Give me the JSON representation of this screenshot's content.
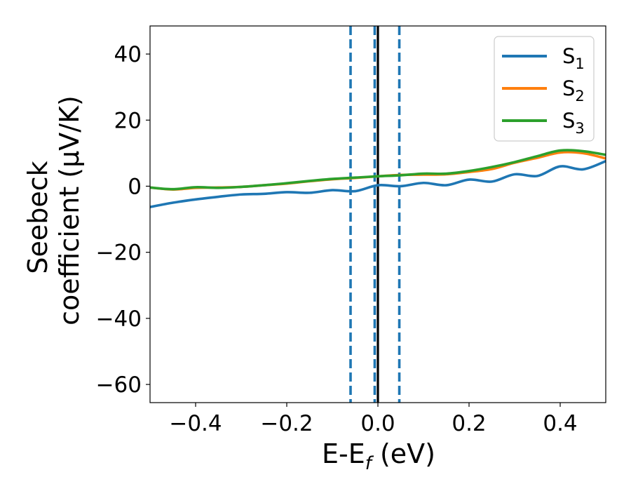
{
  "chart_data": {
    "type": "line",
    "xlabel": {
      "main": "E-E",
      "sub": "f",
      "rest": " (eV)"
    },
    "ylabel": {
      "line1": "Seebeck",
      "line2": "coefficient  (μV/K)"
    },
    "xlim": [
      -0.5,
      0.5
    ],
    "ylim": [
      -65.5,
      48.5
    ],
    "x_ticks": [
      -0.4,
      -0.2,
      0.0,
      0.2,
      0.4
    ],
    "x_tick_labels": [
      "−0.4",
      "−0.2",
      "0.0",
      "0.2",
      "0.4"
    ],
    "y_ticks": [
      40,
      20,
      0,
      -20,
      -40,
      -60
    ],
    "y_tick_labels": [
      "40",
      "20",
      "0",
      "−20",
      "−40",
      "−60"
    ],
    "grid": false,
    "legend_position": "top-right",
    "vertical_lines": [
      {
        "x": 0.0,
        "style": "solid",
        "color": "#000000"
      },
      {
        "x": -0.06,
        "style": "dashed",
        "color": "#1f77b4"
      },
      {
        "x": -0.007,
        "style": "dashed",
        "color": "#1f77b4"
      },
      {
        "x": 0.047,
        "style": "dashed",
        "color": "#1f77b4"
      }
    ],
    "series": [
      {
        "name": "S",
        "sub": "1",
        "color": "#1f77b4",
        "x": [
          -0.5,
          -0.45,
          -0.4,
          -0.35,
          -0.3,
          -0.25,
          -0.2,
          -0.15,
          -0.1,
          -0.05,
          0.0,
          0.05,
          0.1,
          0.15,
          0.2,
          0.25,
          0.3,
          0.35,
          0.4,
          0.45,
          0.5
        ],
        "y": [
          -6.3,
          -5.0,
          -4.0,
          -3.2,
          -2.5,
          -2.3,
          -1.8,
          -2.0,
          -1.2,
          -1.5,
          0.3,
          0.0,
          1.0,
          0.3,
          2.0,
          1.4,
          3.6,
          3.1,
          6.0,
          5.1,
          7.6
        ]
      },
      {
        "name": "S",
        "sub": "2",
        "color": "#ff7f0e",
        "x": [
          -0.5,
          -0.45,
          -0.4,
          -0.35,
          -0.3,
          -0.25,
          -0.2,
          -0.15,
          -0.1,
          -0.05,
          0.0,
          0.05,
          0.1,
          0.15,
          0.2,
          0.25,
          0.3,
          0.35,
          0.4,
          0.45,
          0.5
        ],
        "y": [
          -0.4,
          -1.0,
          -0.5,
          -0.4,
          -0.2,
          0.3,
          0.8,
          1.5,
          2.1,
          2.5,
          3.0,
          3.4,
          3.5,
          3.6,
          4.3,
          5.2,
          7.1,
          8.6,
          10.2,
          10.0,
          8.4
        ]
      },
      {
        "name": "S",
        "sub": "3",
        "color": "#2ca02c",
        "x": [
          -0.5,
          -0.45,
          -0.4,
          -0.35,
          -0.3,
          -0.25,
          -0.2,
          -0.15,
          -0.1,
          -0.05,
          0.0,
          0.05,
          0.1,
          0.15,
          0.2,
          0.25,
          0.3,
          0.35,
          0.4,
          0.45,
          0.5
        ],
        "y": [
          -0.4,
          -0.9,
          -0.3,
          -0.5,
          -0.2,
          0.3,
          0.9,
          1.6,
          2.2,
          2.6,
          3.0,
          3.3,
          3.8,
          3.8,
          4.6,
          5.8,
          7.3,
          9.1,
          10.8,
          10.6,
          9.5
        ]
      }
    ]
  }
}
